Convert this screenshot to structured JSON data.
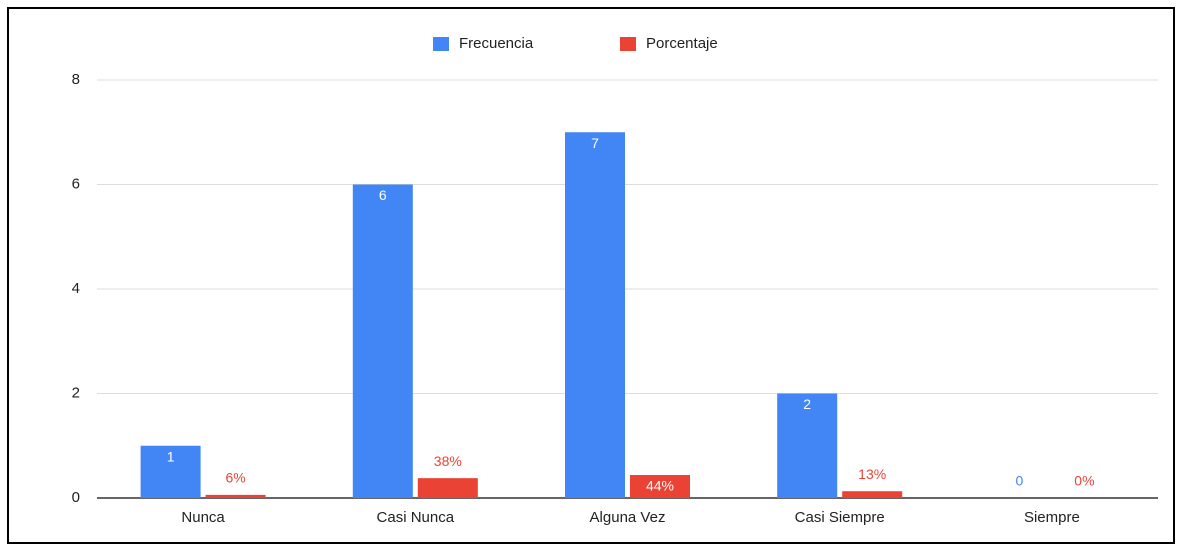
{
  "chart_data": {
    "type": "bar",
    "categories": [
      "Nunca",
      "Casi Nunca",
      "Alguna Vez",
      "Casi Siempre",
      "Siempre"
    ],
    "series": [
      {
        "name": "Frecuencia",
        "color": "#4285f4",
        "values": [
          1,
          6,
          7,
          2,
          0
        ]
      },
      {
        "name": "Porcentaje",
        "color": "#ea4335",
        "values": [
          0.06,
          0.38,
          0.44,
          0.13,
          0
        ],
        "value_labels": [
          "6%",
          "38%",
          "44%",
          "13%",
          "0%"
        ]
      }
    ],
    "ylim": [
      0,
      8
    ],
    "yticks": [
      0,
      2,
      4,
      6,
      8
    ],
    "grid": true,
    "legend": "top"
  }
}
